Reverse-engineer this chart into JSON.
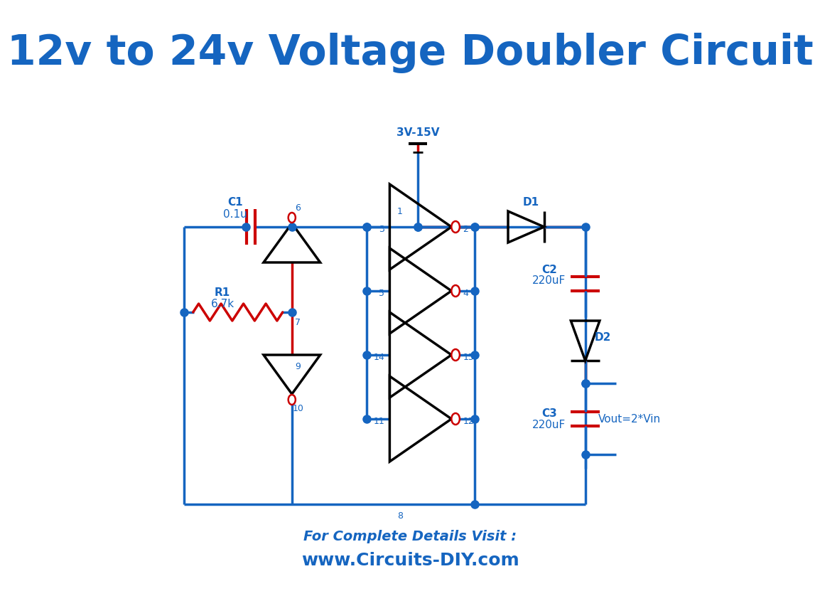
{
  "title": "12v to 24v Voltage Doubler Circuit",
  "title_color": "#1565c0",
  "title_fontsize": 42,
  "title_fontweight": "bold",
  "bg_color": "#ffffff",
  "line_color": "#1565c0",
  "red_color": "#cc0000",
  "black_color": "#000000",
  "label_color": "#1565c0",
  "footer_line1": "For Complete Details Visit :",
  "footer_line2": "www.Circuits-DIY.com",
  "footer_color": "#1565c0",
  "lw": 2.5
}
